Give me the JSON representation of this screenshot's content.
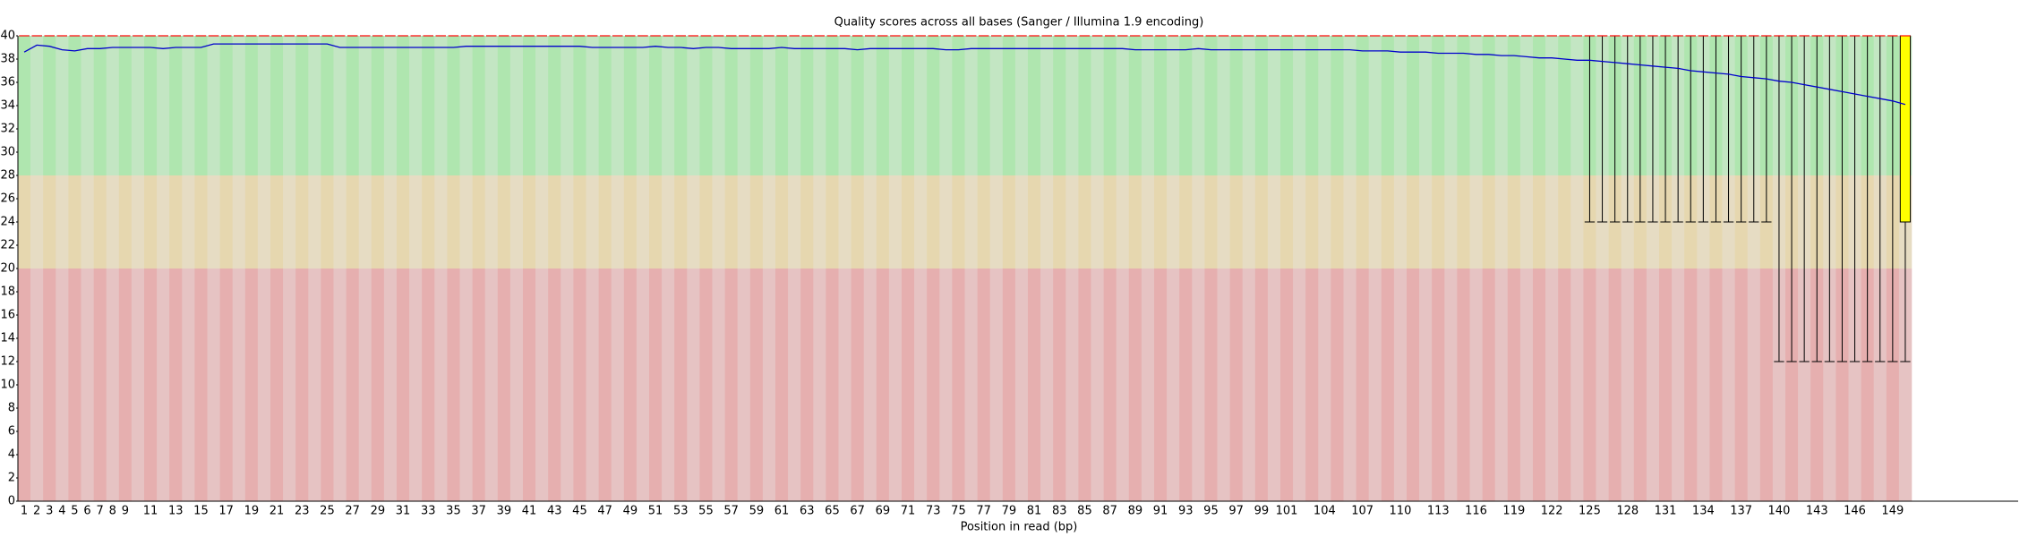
{
  "chart_data": {
    "type": "box",
    "title": "Quality scores across all bases (Sanger / Illumina 1.9 encoding)",
    "x_label": "Position in read (bp)",
    "categories": [
      1,
      2,
      3,
      4,
      5,
      6,
      7,
      8,
      9,
      null,
      11,
      null,
      13,
      null,
      15,
      null,
      17,
      null,
      19,
      null,
      21,
      null,
      23,
      null,
      25,
      null,
      27,
      null,
      29,
      null,
      31,
      null,
      33,
      null,
      35,
      null,
      37,
      null,
      39,
      null,
      41,
      null,
      43,
      null,
      45,
      null,
      47,
      null,
      49,
      null,
      51,
      null,
      53,
      null,
      55,
      null,
      57,
      null,
      59,
      null,
      61,
      null,
      63,
      null,
      65,
      null,
      67,
      null,
      69,
      null,
      71,
      null,
      73,
      null,
      75,
      null,
      77,
      null,
      79,
      null,
      81,
      null,
      83,
      null,
      85,
      null,
      87,
      null,
      89,
      null,
      91,
      null,
      93,
      null,
      95,
      null,
      97,
      null,
      99,
      null,
      101,
      null,
      null,
      104,
      null,
      null,
      107,
      null,
      null,
      110,
      null,
      null,
      113,
      null,
      null,
      116,
      null,
      null,
      119,
      null,
      null,
      122,
      null,
      null,
      125,
      null,
      null,
      128,
      null,
      null,
      131,
      null,
      null,
      134,
      null,
      null,
      137,
      null,
      null,
      140,
      null,
      null,
      143,
      null,
      null,
      146,
      null,
      null,
      149,
      null
    ],
    "median": [
      40,
      40,
      40,
      40,
      40,
      40,
      40,
      40,
      40,
      40,
      40,
      40,
      40,
      40,
      40,
      40,
      40,
      40,
      40,
      40,
      40,
      40,
      40,
      40,
      40,
      40,
      40,
      40,
      40,
      40,
      40,
      40,
      40,
      40,
      40,
      40,
      40,
      40,
      40,
      40,
      40,
      40,
      40,
      40,
      40,
      40,
      40,
      40,
      40,
      40,
      40,
      40,
      40,
      40,
      40,
      40,
      40,
      40,
      40,
      40,
      40,
      40,
      40,
      40,
      40,
      40,
      40,
      40,
      40,
      40,
      40,
      40,
      40,
      40,
      40,
      40,
      40,
      40,
      40,
      40,
      40,
      40,
      40,
      40,
      40,
      40,
      40,
      40,
      40,
      40,
      40,
      40,
      40,
      40,
      40,
      40,
      40,
      40,
      40,
      40,
      40,
      40,
      40,
      40,
      40,
      40,
      40,
      40,
      40,
      40,
      40,
      40,
      40,
      40,
      40,
      40,
      40,
      40,
      40,
      40,
      40,
      40,
      40,
      40,
      40,
      40,
      40,
      40,
      40,
      40,
      40,
      40,
      40,
      40,
      40,
      40,
      40,
      40,
      40,
      40,
      40,
      40,
      40,
      40,
      40,
      40,
      40,
      40,
      40,
      40
    ],
    "q1": [
      40,
      40,
      40,
      40,
      40,
      40,
      40,
      40,
      40,
      40,
      40,
      40,
      40,
      40,
      40,
      40,
      40,
      40,
      40,
      40,
      40,
      40,
      40,
      40,
      40,
      40,
      40,
      40,
      40,
      40,
      40,
      40,
      40,
      40,
      40,
      40,
      40,
      40,
      40,
      40,
      40,
      40,
      40,
      40,
      40,
      40,
      40,
      40,
      40,
      40,
      40,
      40,
      40,
      40,
      40,
      40,
      40,
      40,
      40,
      40,
      40,
      40,
      40,
      40,
      40,
      40,
      40,
      40,
      40,
      40,
      40,
      40,
      40,
      40,
      40,
      40,
      40,
      40,
      40,
      40,
      40,
      40,
      40,
      40,
      40,
      40,
      40,
      40,
      40,
      40,
      40,
      40,
      40,
      40,
      40,
      40,
      40,
      40,
      40,
      40,
      40,
      40,
      40,
      40,
      40,
      40,
      40,
      40,
      40,
      40,
      40,
      40,
      40,
      40,
      40,
      40,
      40,
      40,
      40,
      40,
      40,
      40,
      40,
      40,
      40,
      40,
      40,
      40,
      40,
      40,
      40,
      40,
      40,
      40,
      40,
      40,
      40,
      40,
      40,
      40,
      40,
      40,
      40,
      40,
      40,
      40,
      40,
      40,
      40,
      24
    ],
    "q3": [
      40,
      40,
      40,
      40,
      40,
      40,
      40,
      40,
      40,
      40,
      40,
      40,
      40,
      40,
      40,
      40,
      40,
      40,
      40,
      40,
      40,
      40,
      40,
      40,
      40,
      40,
      40,
      40,
      40,
      40,
      40,
      40,
      40,
      40,
      40,
      40,
      40,
      40,
      40,
      40,
      40,
      40,
      40,
      40,
      40,
      40,
      40,
      40,
      40,
      40,
      40,
      40,
      40,
      40,
      40,
      40,
      40,
      40,
      40,
      40,
      40,
      40,
      40,
      40,
      40,
      40,
      40,
      40,
      40,
      40,
      40,
      40,
      40,
      40,
      40,
      40,
      40,
      40,
      40,
      40,
      40,
      40,
      40,
      40,
      40,
      40,
      40,
      40,
      40,
      40,
      40,
      40,
      40,
      40,
      40,
      40,
      40,
      40,
      40,
      40,
      40,
      40,
      40,
      40,
      40,
      40,
      40,
      40,
      40,
      40,
      40,
      40,
      40,
      40,
      40,
      40,
      40,
      40,
      40,
      40,
      40,
      40,
      40,
      40,
      40,
      40,
      40,
      40,
      40,
      40,
      40,
      40,
      40,
      40,
      40,
      40,
      40,
      40,
      40,
      40,
      40,
      40,
      40,
      40,
      40,
      40,
      40,
      40,
      40,
      40
    ],
    "whisker_low": [
      40,
      40,
      40,
      40,
      40,
      40,
      40,
      40,
      40,
      40,
      40,
      40,
      40,
      40,
      40,
      40,
      40,
      40,
      40,
      40,
      40,
      40,
      40,
      40,
      40,
      40,
      40,
      40,
      40,
      40,
      40,
      40,
      40,
      40,
      40,
      40,
      40,
      40,
      40,
      40,
      40,
      40,
      40,
      40,
      40,
      40,
      40,
      40,
      40,
      40,
      40,
      40,
      40,
      40,
      40,
      40,
      40,
      40,
      40,
      40,
      40,
      40,
      40,
      40,
      40,
      40,
      40,
      40,
      40,
      40,
      40,
      40,
      40,
      40,
      40,
      40,
      40,
      40,
      40,
      40,
      40,
      40,
      40,
      40,
      40,
      40,
      40,
      40,
      40,
      40,
      40,
      40,
      40,
      40,
      40,
      40,
      40,
      40,
      40,
      40,
      40,
      40,
      40,
      40,
      40,
      40,
      40,
      40,
      40,
      40,
      40,
      40,
      40,
      40,
      40,
      40,
      40,
      40,
      40,
      40,
      40,
      40,
      40,
      40,
      24,
      24,
      24,
      24,
      24,
      24,
      24,
      24,
      24,
      24,
      24,
      24,
      24,
      24,
      24,
      12,
      12,
      12,
      12,
      12,
      12,
      12,
      12,
      12,
      12,
      12
    ],
    "whisker_high": [
      40,
      40,
      40,
      40,
      40,
      40,
      40,
      40,
      40,
      40,
      40,
      40,
      40,
      40,
      40,
      40,
      40,
      40,
      40,
      40,
      40,
      40,
      40,
      40,
      40,
      40,
      40,
      40,
      40,
      40,
      40,
      40,
      40,
      40,
      40,
      40,
      40,
      40,
      40,
      40,
      40,
      40,
      40,
      40,
      40,
      40,
      40,
      40,
      40,
      40,
      40,
      40,
      40,
      40,
      40,
      40,
      40,
      40,
      40,
      40,
      40,
      40,
      40,
      40,
      40,
      40,
      40,
      40,
      40,
      40,
      40,
      40,
      40,
      40,
      40,
      40,
      40,
      40,
      40,
      40,
      40,
      40,
      40,
      40,
      40,
      40,
      40,
      40,
      40,
      40,
      40,
      40,
      40,
      40,
      40,
      40,
      40,
      40,
      40,
      40,
      40,
      40,
      40,
      40,
      40,
      40,
      40,
      40,
      40,
      40,
      40,
      40,
      40,
      40,
      40,
      40,
      40,
      40,
      40,
      40,
      40,
      40,
      40,
      40,
      40,
      40,
      40,
      40,
      40,
      40,
      40,
      40,
      40,
      40,
      40,
      40,
      40,
      40,
      40,
      40,
      40,
      40,
      40,
      40,
      40,
      40,
      40,
      40,
      40,
      40
    ],
    "mean": [
      38.6,
      39.2,
      39.1,
      38.8,
      38.7,
      38.9,
      38.9,
      39.0,
      39.0,
      39.0,
      39.0,
      38.9,
      39.0,
      39.0,
      39.0,
      39.3,
      39.3,
      39.3,
      39.3,
      39.3,
      39.3,
      39.3,
      39.3,
      39.3,
      39.3,
      39.0,
      39.0,
      39.0,
      39.0,
      39.0,
      39.0,
      39.0,
      39.0,
      39.0,
      39.0,
      39.1,
      39.1,
      39.1,
      39.1,
      39.1,
      39.1,
      39.1,
      39.1,
      39.1,
      39.1,
      39.0,
      39.0,
      39.0,
      39.0,
      39.0,
      39.1,
      39.0,
      39.0,
      38.9,
      39.0,
      39.0,
      38.9,
      38.9,
      38.9,
      38.9,
      39.0,
      38.9,
      38.9,
      38.9,
      38.9,
      38.9,
      38.8,
      38.9,
      38.9,
      38.9,
      38.9,
      38.9,
      38.9,
      38.8,
      38.8,
      38.9,
      38.9,
      38.9,
      38.9,
      38.9,
      38.9,
      38.9,
      38.9,
      38.9,
      38.9,
      38.9,
      38.9,
      38.9,
      38.8,
      38.8,
      38.8,
      38.8,
      38.8,
      38.9,
      38.8,
      38.8,
      38.8,
      38.8,
      38.8,
      38.8,
      38.8,
      38.8,
      38.8,
      38.8,
      38.8,
      38.8,
      38.7,
      38.7,
      38.7,
      38.6,
      38.6,
      38.6,
      38.5,
      38.5,
      38.5,
      38.4,
      38.4,
      38.3,
      38.3,
      38.2,
      38.1,
      38.1,
      38.0,
      37.9,
      37.9,
      37.8,
      37.7,
      37.6,
      37.5,
      37.4,
      37.3,
      37.2,
      37.0,
      36.9,
      36.8,
      36.7,
      36.5,
      36.4,
      36.3,
      36.1,
      36.0,
      35.8,
      35.6,
      35.4,
      35.2,
      35.0,
      34.8,
      34.6,
      34.4,
      34.1
    ],
    "box_color": "#ffff00",
    "median_color": "#ff0000",
    "mean_color": "#0000cc",
    "zones": [
      {
        "from": 28,
        "to": 40,
        "colors": [
          "#afe6af",
          "#c3e6c3"
        ]
      },
      {
        "from": 20,
        "to": 28,
        "colors": [
          "#e6d7af",
          "#e6dcc3"
        ]
      },
      {
        "from": 0,
        "to": 20,
        "colors": [
          "#e6afaf",
          "#e6c3c3"
        ]
      }
    ],
    "ylim": [
      0,
      40
    ],
    "yticks": [
      0,
      2,
      4,
      6,
      8,
      10,
      12,
      14,
      16,
      18,
      20,
      22,
      24,
      26,
      28,
      30,
      32,
      34,
      36,
      38,
      40
    ]
  }
}
